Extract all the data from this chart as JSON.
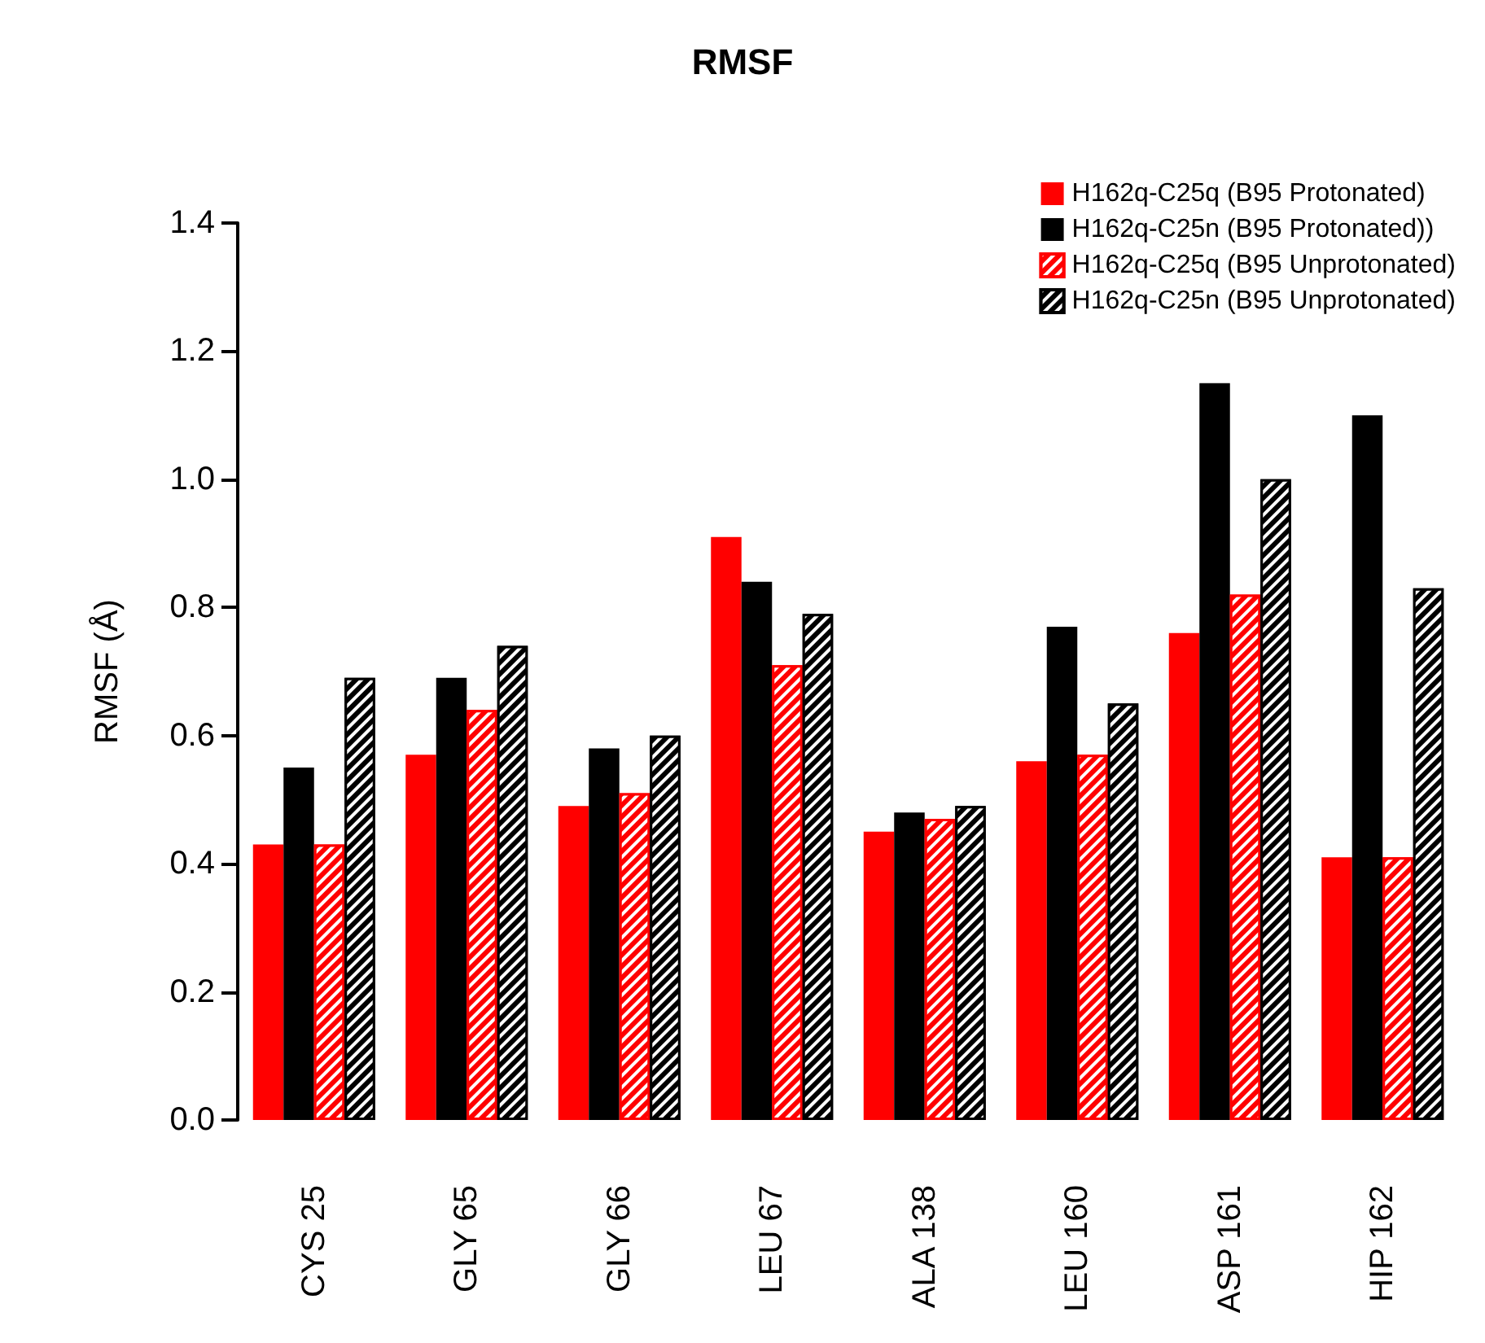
{
  "chart_data": {
    "type": "bar",
    "title": "RMSF",
    "ylabel": "RMSF (Å)",
    "categories": [
      "CYS 25",
      "GLY 65",
      "GLY 66",
      "LEU 67",
      "ALA 138",
      "LEU 160",
      "ASP 161",
      "HIP 162"
    ],
    "series": [
      {
        "name": "H162q-C25q (B95 Protonated)",
        "color": "#ff0000",
        "values": [
          0.43,
          0.57,
          0.49,
          0.91,
          0.45,
          0.56,
          0.76,
          0.41
        ]
      },
      {
        "name": "H162q-C25n (B95 Protonated))",
        "color": "#000000",
        "values": [
          0.55,
          0.69,
          0.58,
          0.84,
          0.48,
          0.77,
          1.15,
          1.1
        ]
      },
      {
        "name": "H162q-C25q (B95 Unprotonated)",
        "color": "#ff0000",
        "values": [
          0.43,
          0.64,
          0.51,
          0.71,
          0.47,
          0.57,
          0.82,
          0.41
        ]
      },
      {
        "name": "H162q-C25n (B95 Unprotonated)",
        "color": "#000000",
        "values": [
          0.69,
          0.74,
          0.6,
          0.79,
          0.49,
          0.65,
          1.0,
          0.83
        ]
      }
    ],
    "ylim": [
      0,
      1.4
    ],
    "yticks": [
      {
        "value": 0,
        "label": "0.0"
      },
      0.2,
      0.4,
      0.6,
      0.8,
      {
        "value": 1,
        "label": "1.0"
      },
      1.2,
      1.4
    ],
    "grid": false,
    "legend": "top right"
  }
}
